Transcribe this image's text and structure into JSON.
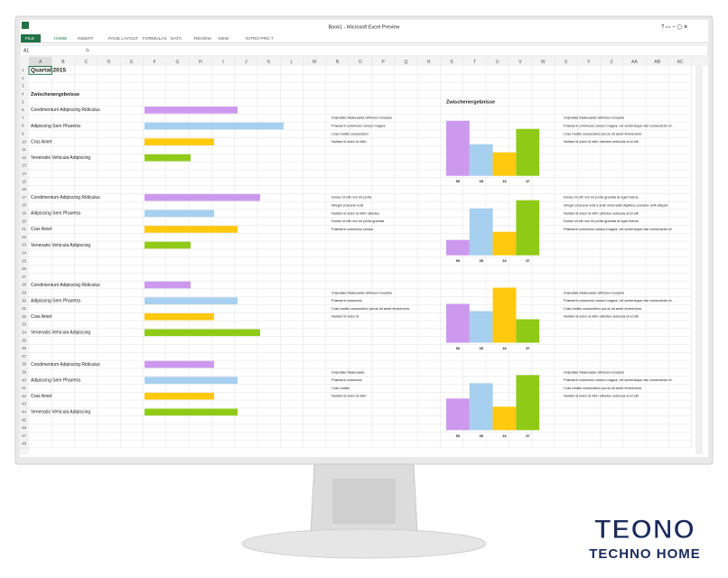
{
  "window": {
    "title": "Book1 - Microsoft Excel Preview",
    "tabs": [
      "FILE",
      "HOME",
      "INSERT",
      "PAGE LAYOUT",
      "FORMULAS",
      "DATA",
      "REVIEW",
      "VIEW",
      "NITRO PRO 7"
    ],
    "name_box": "A1",
    "fx": "fx",
    "columns": [
      "A",
      "B",
      "C",
      "D",
      "E",
      "F",
      "G",
      "H",
      "I",
      "J",
      "K",
      "L",
      "M",
      "N",
      "O",
      "P",
      "Q",
      "R",
      "S",
      "T",
      "U",
      "V",
      "W",
      "X",
      "Y",
      "Z",
      "AA",
      "AB",
      "AC"
    ],
    "row_numbers": [
      1,
      2,
      3,
      4,
      5,
      6,
      7,
      8,
      9,
      10,
      11,
      12,
      13,
      14,
      15,
      16,
      17,
      18,
      19,
      20,
      21,
      22,
      23,
      24,
      25,
      26,
      27,
      28,
      29,
      30,
      31,
      32,
      33,
      34,
      35,
      36,
      37,
      38,
      39,
      40,
      41,
      42,
      43,
      44,
      45,
      46,
      47,
      48
    ]
  },
  "sheet": {
    "title": "Quartal 2015",
    "heading": "Zwischenergebnisse",
    "chart_heading": "Zwischenergebnisse",
    "sections": [
      {
        "labels": [
          "Condimentum Adipiscing Ridiculus",
          "Adipiscing Sem Pharetra",
          "Cras Amet",
          "Venenatis Vehicula Adipiscing"
        ],
        "notes": [
          [
            "Vulputate Malesuada Ultricies Inceptos",
            "Vulputate Malesuada Ultricies Inceptos"
          ],
          [
            "Praesent commodo cursus magna",
            "Praesent commodo cursus magna, vel scelerisque nisl consectetur et."
          ],
          [
            "Cras mattis consectetur",
            "Cras mattis consectetur purus sit amet fermentum."
          ],
          [
            "Nullam id dolor id nibh",
            "Nullam id dolor id nibh ultricies vehicula ut id elit."
          ]
        ]
      },
      {
        "labels": [
          "Condimentum Adipiscing Ridiculus",
          "Adipiscing Sem Pharetra",
          "Cras Amet",
          "Venenatis Vehicula Adipiscing"
        ],
        "notes": [
          [
            "Donec id elit non mi porta",
            "Donec id elit non mi porta gravida at eget metus."
          ],
          [
            "Integer posuere erat",
            "Integer posuere erat a ante venenatis dapibus posuere velit aliquet."
          ],
          [
            "Nullam id dolor id nibh ultricies",
            "Nullam id dolor id nibh ultricies vehicula ut id elit."
          ],
          [
            "Donec id elit non mi porta gravida",
            "Donec id elit non mi porta gravida at eget metus."
          ],
          [
            "Praesent commodo cursus",
            "Praesent commodo cursus magna, vel scelerisque nisl consectetur et."
          ]
        ]
      },
      {
        "labels": [
          "Condimentum Adipiscing Ridiculus",
          "Adipiscing Sem Pharetra",
          "Cras Amet",
          "Venenatis Vehicula Adipiscing"
        ],
        "notes": [
          [
            "Vulputate Malesuada Ultricies Inceptos",
            "Vulputate Malesuada Ultricies Inceptos"
          ],
          [
            "Praesent commodo",
            "Praesent commodo cursus magna, vel scelerisque nisl consectetur et."
          ],
          [
            "Cras mattis consectetur purus sit amet fermentum.",
            "Cras mattis consectetur purus sit amet fermentum."
          ],
          [
            "Nullam id dolor id",
            "Nullam id dolor id nibh ultricies vehicula ut id elit."
          ]
        ]
      },
      {
        "labels": [
          "Condimentum Adipiscing Ridiculus",
          "Adipiscing Sem Pharetra",
          "Cras Amet",
          "Venenatis Vehicula Adipiscing"
        ],
        "notes": [
          [
            "Vulputate Malesuada",
            "Vulputate Malesuada Ultricies Inceptos"
          ],
          [
            "Praesent commodo",
            "Praesent commodo cursus magna, vel scelerisque nisl consectetur et."
          ],
          [
            "Cras mattis",
            "Cras mattis consectetur purus sit amet fermentum."
          ],
          [
            "Nullam id dolor id nibh",
            "Nullam id dolor id nibh ultricies vehicula ut id elit."
          ]
        ]
      }
    ],
    "charts": [
      {
        "type": "bar",
        "categories": [
          50,
          35,
          16,
          37
        ],
        "values": [
          61,
          35,
          26,
          52
        ],
        "colors": [
          "#cc99ee",
          "#a6cff0",
          "#ffc90e",
          "#8fcb16"
        ],
        "ylim": [
          0,
          61
        ]
      },
      {
        "type": "bar",
        "categories": [
          50,
          35,
          16,
          37
        ],
        "values": [
          17,
          52,
          26,
          61
        ],
        "colors": [
          "#cc99ee",
          "#a6cff0",
          "#ffc90e",
          "#8fcb16"
        ],
        "ylim": [
          0,
          61
        ]
      },
      {
        "type": "bar",
        "categories": [
          50,
          35,
          16,
          37
        ],
        "values": [
          43,
          35,
          61,
          26
        ],
        "colors": [
          "#cc99ee",
          "#a6cff0",
          "#ffc90e",
          "#8fcb16"
        ],
        "ylim": [
          0,
          61
        ]
      },
      {
        "type": "bar",
        "categories": [
          50,
          35,
          16,
          37
        ],
        "values": [
          35,
          52,
          26,
          61
        ],
        "colors": [
          "#cc99ee",
          "#a6cff0",
          "#ffc90e",
          "#8fcb16"
        ],
        "ylim": [
          0,
          61
        ]
      }
    ]
  },
  "logo": {
    "brand": "TEONO",
    "tagline": "TECHNO HOME"
  }
}
